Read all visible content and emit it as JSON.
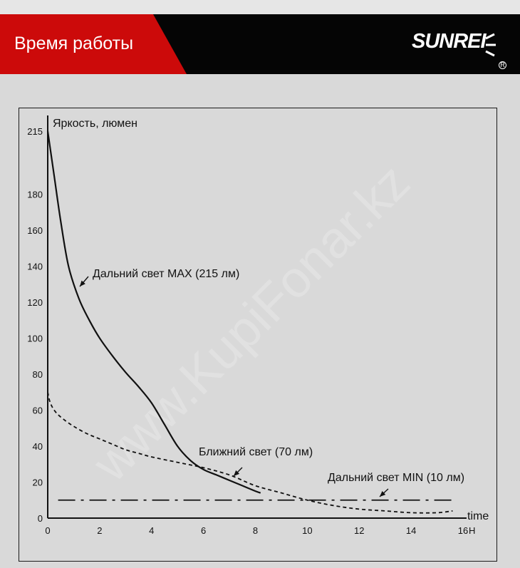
{
  "header": {
    "title": "Время работы",
    "brand": "SUNREI",
    "brand_reg": "R"
  },
  "watermark": "www.KupiFonar.kz",
  "colors": {
    "header_red": "#cc0a0a",
    "header_black": "#050505",
    "background": "#d9d9d9",
    "ink": "#111111"
  },
  "chart_data": {
    "type": "line",
    "ylabel": "Яркость, люмен",
    "xlabel": "time",
    "x_unit": "H",
    "xlim": [
      0,
      16
    ],
    "ylim": [
      0,
      215
    ],
    "x_ticks": [
      0,
      2,
      4,
      6,
      8,
      10,
      12,
      14,
      16
    ],
    "y_ticks": [
      0,
      20,
      40,
      60,
      80,
      100,
      120,
      140,
      160,
      180,
      215
    ],
    "grid": false,
    "series": [
      {
        "name": "Дальний свет MAX (215 лм)",
        "style": "solid",
        "x": [
          0,
          0.25,
          0.5,
          0.8,
          1.2,
          1.6,
          2,
          2.5,
          3,
          3.5,
          4,
          4.5,
          5,
          5.5,
          6,
          6.5,
          7,
          7.5,
          8,
          8.2
        ],
        "y": [
          215,
          190,
          165,
          140,
          122,
          110,
          100,
          90,
          81,
          73,
          64,
          52,
          40,
          32,
          27,
          24,
          21,
          18,
          15,
          14
        ]
      },
      {
        "name": "Ближний свет (70 лм)",
        "style": "dashed",
        "x": [
          0,
          0.1,
          0.3,
          0.6,
          1,
          1.5,
          2,
          2.5,
          3,
          3.5,
          4,
          5,
          6,
          7,
          8,
          9,
          10,
          11,
          12,
          13,
          14,
          15,
          15.6
        ],
        "y": [
          70,
          64,
          59,
          55,
          51,
          47,
          44,
          41,
          38,
          36,
          34,
          31,
          28,
          24,
          18,
          14,
          10,
          7,
          5,
          4,
          3,
          3,
          4
        ]
      },
      {
        "name": "Дальний свет MIN (10 лм)",
        "style": "dashdot",
        "x": [
          0.4,
          15.6
        ],
        "y": [
          10,
          10
        ]
      }
    ],
    "annotations": [
      {
        "text": "Дальний свет MAX (215 лм)",
        "series": 0,
        "arrow_x": 1.3,
        "arrow_y": 118
      },
      {
        "text": "Ближний свет (70 лм)",
        "series": 1,
        "arrow_x": 7.2,
        "arrow_y": 25
      },
      {
        "text": "Дальний свет MIN (10 лм)",
        "series": 2,
        "arrow_x": 12.8,
        "arrow_y": 10
      }
    ]
  }
}
